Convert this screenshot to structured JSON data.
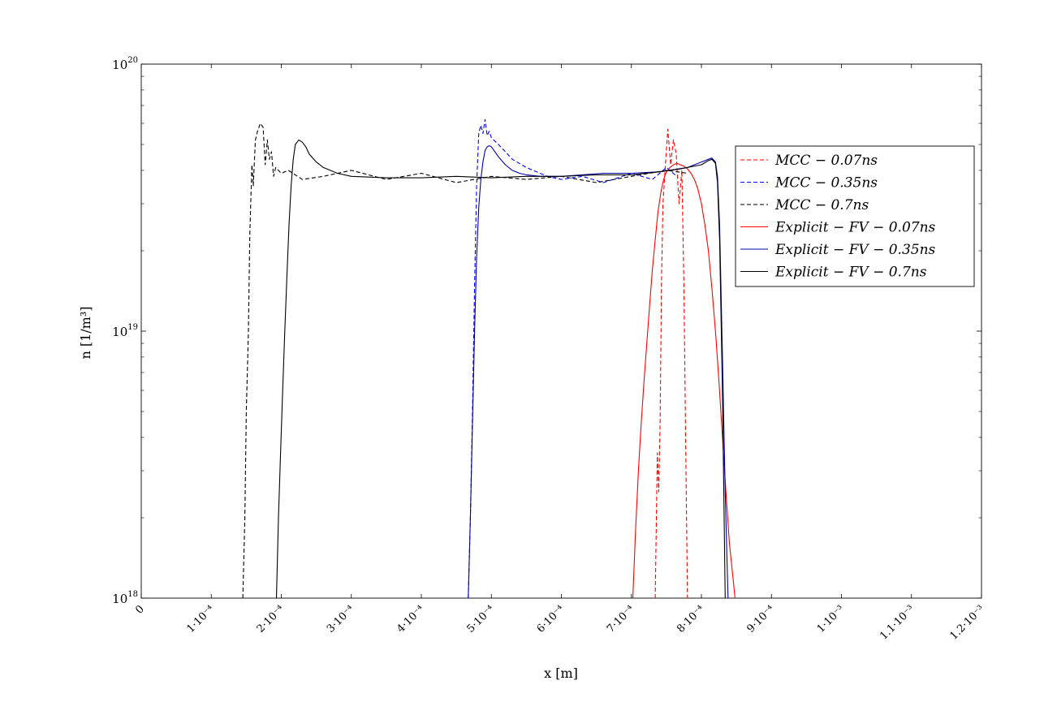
{
  "chart_data": {
    "type": "line",
    "xlabel": "x [m]",
    "ylabel": "n [1/m³]",
    "xlim": [
      0,
      0.0012
    ],
    "ylim": [
      1e+18,
      1e+20
    ],
    "yscale": "log",
    "grid": false,
    "legend_position": "right",
    "x_tick_labels": [
      "0",
      "1·10⁻⁴",
      "2·10⁻⁴",
      "3·10⁻⁴",
      "4·10⁻⁴",
      "5·10⁻⁴",
      "6·10⁻⁴",
      "7·10⁻⁴",
      "8·10⁻⁴",
      "9·10⁻⁴",
      "1·10⁻³",
      "1.1·10⁻³",
      "1.2·10⁻³"
    ],
    "x_tick_values": [
      0,
      0.0001,
      0.0002,
      0.0003,
      0.0004,
      0.0005,
      0.0006,
      0.0007,
      0.0008,
      0.0009,
      0.001,
      0.0011,
      0.0012
    ],
    "y_ticks": [
      {
        "value": 1e+18,
        "base": "10",
        "exp": "18"
      },
      {
        "value": 1e+19,
        "base": "10",
        "exp": "19"
      },
      {
        "value": 1e+20,
        "base": "10",
        "exp": "20"
      }
    ],
    "series": [
      {
        "name": "MCC − 0.07ns",
        "color": "#ff0000",
        "dash": true,
        "x": [
          0.000734,
          0.000737,
          0.000739,
          0.000741,
          0.000743,
          0.000745,
          0.000748,
          0.000752,
          0.000756,
          0.00076,
          0.000764,
          0.000768,
          0.000772,
          0.000775,
          0.000778,
          0.00078
        ],
        "y": [
          1e+18,
          3.5e+18,
          2.5e+18,
          4.5e+18,
          1.5e+19,
          3e+19,
          4e+19,
          5.7e+19,
          4.2e+19,
          5.2e+19,
          4.6e+19,
          3e+19,
          4e+19,
          1.5e+19,
          3e+18,
          1e+18
        ]
      },
      {
        "name": "MCC − 0.35ns",
        "color": "#0000ff",
        "dash": true,
        "x": [
          0.000467,
          0.00047,
          0.000473,
          0.000476,
          0.000479,
          0.000482,
          0.000485,
          0.000488,
          0.000491,
          0.000494,
          0.000497,
          0.0005,
          0.00051,
          0.00052,
          0.00053,
          0.00055,
          0.00058,
          0.0006,
          0.00063,
          0.00066,
          0.0007,
          0.00073,
          0.00075,
          0.000765
        ],
        "y": [
          1e+18,
          2e+18,
          5e+18,
          1.5e+19,
          3.5e+19,
          5.5e+19,
          5.9e+19,
          5.5e+19,
          6.2e+19,
          5.4e+19,
          5.6e+19,
          5.3e+19,
          5e+19,
          4.7e+19,
          4.4e+19,
          4.1e+19,
          3.8e+19,
          3.7e+19,
          3.8e+19,
          3.6e+19,
          3.9e+19,
          3.7e+19,
          4.1e+19,
          3.8e+19
        ]
      },
      {
        "name": "MCC − 0.7ns",
        "color": "#000000",
        "dash": true,
        "x": [
          0.000145,
          0.000148,
          0.00015,
          0.000153,
          0.000155,
          0.000158,
          0.00016,
          0.000163,
          0.000166,
          0.00017,
          0.000174,
          0.000177,
          0.00018,
          0.000183,
          0.000186,
          0.000189,
          0.000192,
          0.0002,
          0.00021,
          0.00023,
          0.00026,
          0.0003,
          0.00035,
          0.0004,
          0.00045,
          0.0005,
          0.00055,
          0.0006,
          0.00065,
          0.0007,
          0.00075,
          0.00078
        ],
        "y": [
          1e+18,
          2e+18,
          5e+18,
          1e+19,
          2.3e+19,
          4.2e+19,
          3.5e+19,
          5.2e+19,
          5.6e+19,
          6e+19,
          5.8e+19,
          4.2e+19,
          5.2e+19,
          4.4e+19,
          4.7e+19,
          3.8e+19,
          4.1e+19,
          3.9e+19,
          4e+19,
          3.7e+19,
          3.8e+19,
          4e+19,
          3.7e+19,
          3.9e+19,
          3.6e+19,
          3.8e+19,
          3.7e+19,
          3.8e+19,
          3.6e+19,
          3.8e+19,
          4e+19,
          3.9e+19
        ]
      },
      {
        "name": "Explicit − FV − 0.07ns",
        "color": "#ff0000",
        "dash": false,
        "x": [
          0.000702,
          0.000706,
          0.00071,
          0.000714,
          0.000718,
          0.000722,
          0.000726,
          0.00073,
          0.000734,
          0.000738,
          0.000742,
          0.000746,
          0.00075,
          0.000755,
          0.00076,
          0.000765,
          0.00077,
          0.000775,
          0.00078,
          0.000785,
          0.00079,
          0.000795,
          0.0008,
          0.000805,
          0.00081,
          0.000815,
          0.00082,
          0.000825,
          0.00083,
          0.000835,
          0.00084,
          0.000845,
          0.000848
        ],
        "y": [
          1e+18,
          1.8e+18,
          3e+18,
          4.5e+18,
          6.5e+18,
          9e+18,
          1.25e+19,
          1.7e+19,
          2.2e+19,
          2.8e+19,
          3.3e+19,
          3.7e+19,
          3.95e+19,
          4.1e+19,
          4.2e+19,
          4.25e+19,
          4.2e+19,
          4.15e+19,
          4.05e+19,
          3.9e+19,
          3.7e+19,
          3.4e+19,
          3e+19,
          2.5e+19,
          2e+19,
          1.45e+19,
          1e+19,
          6.5e+18,
          4e+18,
          2.5e+18,
          1.6e+18,
          1.2e+18,
          1e+18
        ]
      },
      {
        "name": "Explicit − FV − 0.35ns",
        "color": "#0000aa",
        "dash": false,
        "x": [
          0.000467,
          0.00047,
          0.000473,
          0.000476,
          0.000479,
          0.000482,
          0.000485,
          0.000488,
          0.000491,
          0.000494,
          0.000497,
          0.0005,
          0.000505,
          0.00051,
          0.00052,
          0.00053,
          0.00054,
          0.00055,
          0.00057,
          0.0006,
          0.00063,
          0.00066,
          0.0007,
          0.00074,
          0.00078,
          0.0008,
          0.00081,
          0.000815,
          0.00082,
          0.000823,
          0.000826,
          0.00083,
          0.000834,
          0.000838
        ],
        "y": [
          1e+18,
          2e+18,
          4.5e+18,
          1e+19,
          1.9e+19,
          2.9e+19,
          3.7e+19,
          4.3e+19,
          4.75e+19,
          4.9e+19,
          4.95e+19,
          4.9e+19,
          4.7e+19,
          4.5e+19,
          4.2e+19,
          4e+19,
          3.9e+19,
          3.85e+19,
          3.8e+19,
          3.8e+19,
          3.85e+19,
          3.9e+19,
          3.9e+19,
          3.95e+19,
          4.1e+19,
          4.3e+19,
          4.4e+19,
          4.45e+19,
          4.3e+19,
          3.8e+19,
          2.5e+19,
          8e+18,
          2.5e+18,
          1e+18
        ]
      },
      {
        "name": "Explicit − FV − 0.7ns",
        "color": "#000000",
        "dash": false,
        "x": [
          0.000193,
          0.000196,
          0.000199,
          0.000202,
          0.000205,
          0.000208,
          0.000211,
          0.000214,
          0.000217,
          0.00022,
          0.000225,
          0.00023,
          0.000235,
          0.00024,
          0.00025,
          0.00026,
          0.00027,
          0.00028,
          0.0003,
          0.00035,
          0.0004,
          0.00045,
          0.0005,
          0.00055,
          0.0006,
          0.00065,
          0.0007,
          0.00074,
          0.00077,
          0.0008,
          0.00081,
          0.000815,
          0.00082,
          0.000823,
          0.000826,
          0.00083,
          0.000834
        ],
        "y": [
          1e+18,
          2e+18,
          3.5e+18,
          6e+18,
          1e+19,
          1.6e+19,
          2.5e+19,
          3.5e+19,
          4.4e+19,
          5e+19,
          5.2e+19,
          5.1e+19,
          4.9e+19,
          4.6e+19,
          4.3e+19,
          4.1e+19,
          4e+19,
          3.9e+19,
          3.8e+19,
          3.75e+19,
          3.75e+19,
          3.8e+19,
          3.75e+19,
          3.8e+19,
          3.8e+19,
          3.85e+19,
          3.85e+19,
          3.95e+19,
          4.05e+19,
          4.2e+19,
          4.35e+19,
          4.4e+19,
          4.25e+19,
          3.6e+19,
          2.2e+19,
          6e+18,
          1e+18
        ]
      }
    ]
  }
}
